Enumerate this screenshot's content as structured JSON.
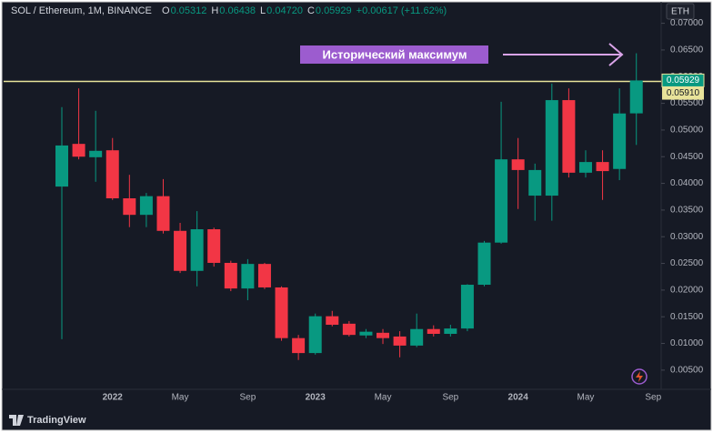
{
  "chart_data": {
    "type": "candlestick",
    "title": "SOL / Ethereum, 1M, BINANCE",
    "header": {
      "items": [
        {
          "key": "O",
          "value": 0.05312
        },
        {
          "key": "H",
          "value": 0.06438
        },
        {
          "key": "L",
          "value": 0.0472,
          "label": "0.04720"
        },
        {
          "key": "C",
          "value": 0.05929
        }
      ],
      "change": "+0.00617 (+11.62%)"
    },
    "currency": "ETH",
    "brand": "TradingView",
    "annotation": "Исторический максимум",
    "categories": [
      null,
      null,
      null,
      "2022",
      null,
      null,
      null,
      "May",
      null,
      null,
      null,
      "Sep",
      null,
      null,
      null,
      "2023",
      null,
      null,
      null,
      "May",
      null,
      null,
      null,
      "Sep",
      null,
      null,
      null,
      "2024",
      null,
      null,
      null,
      "May",
      null,
      null,
      null,
      "Sep"
    ],
    "open": [
      0.0394,
      0.0474,
      0.0449,
      0.0462,
      0.0372,
      0.0341,
      0.0376,
      0.0311,
      0.0236,
      0.0314,
      0.0251,
      0.0203,
      0.0249,
      0.0205,
      0.011,
      0.0082,
      0.0151,
      0.0137,
      0.0115,
      0.012,
      0.0113,
      0.0096,
      0.0127,
      0.0118,
      0.0128,
      0.021,
      0.0289,
      0.0445,
      0.0377,
      0.0377,
      0.0556,
      0.042,
      0.044,
      0.0427,
      0.05312,
      null
    ],
    "high": [
      0.0543,
      0.0578,
      0.0536,
      0.0485,
      0.0416,
      0.0382,
      0.0408,
      0.0326,
      0.0348,
      0.0317,
      0.0255,
      0.0258,
      0.0251,
      0.0207,
      0.0116,
      0.0156,
      0.0161,
      0.0142,
      0.0127,
      0.0127,
      0.0123,
      0.0156,
      0.0134,
      0.0135,
      0.0211,
      0.0292,
      0.0553,
      0.0485,
      0.0437,
      0.0587,
      0.0578,
      0.0462,
      0.0462,
      0.0578,
      0.06438,
      null
    ],
    "low": [
      0.0108,
      0.0445,
      0.0403,
      0.0369,
      0.0318,
      0.0318,
      0.0306,
      0.0232,
      0.0207,
      0.0244,
      0.0198,
      0.0181,
      0.0202,
      0.0105,
      0.0069,
      0.0079,
      0.0132,
      0.0113,
      0.011,
      0.0099,
      0.0074,
      0.0093,
      0.0113,
      0.0113,
      0.0123,
      0.0207,
      0.0287,
      0.0352,
      0.033,
      0.033,
      0.0411,
      0.0411,
      0.0369,
      0.0406,
      0.0472,
      null
    ],
    "close": [
      0.0471,
      0.045,
      0.0461,
      0.0372,
      0.0341,
      0.0376,
      0.0311,
      0.0236,
      0.0314,
      0.0251,
      0.0203,
      0.0249,
      0.0205,
      0.011,
      0.0082,
      0.0151,
      0.0135,
      0.0116,
      0.0122,
      0.011,
      0.0096,
      0.0127,
      0.0118,
      0.0128,
      0.021,
      0.0289,
      0.0445,
      0.0425,
      0.0425,
      0.0556,
      0.042,
      0.044,
      0.0423,
      0.0531,
      0.05929,
      null
    ],
    "up_color": "#089981",
    "down_color": "#f23645",
    "ylim": [
      0.0014,
      0.073
    ],
    "yticks": [
      {
        "value": 0.005,
        "label": "0.00500"
      },
      {
        "value": 0.01,
        "label": "0.01000"
      },
      {
        "value": 0.015,
        "label": "0.01500"
      },
      {
        "value": 0.02,
        "label": "0.02000"
      },
      {
        "value": 0.025,
        "label": "0.02500"
      },
      {
        "value": 0.03,
        "label": "0.03000"
      },
      {
        "value": 0.035,
        "label": "0.03500"
      },
      {
        "value": 0.04,
        "label": "0.04000"
      },
      {
        "value": 0.045,
        "label": "0.04500"
      },
      {
        "value": 0.05,
        "label": "0.05000"
      },
      {
        "value": 0.055,
        "label": "0.05500"
      },
      {
        "value": 0.06,
        "label": "0.06000"
      },
      {
        "value": 0.065,
        "label": "0.06500"
      },
      {
        "value": 0.07,
        "label": "0.07000"
      }
    ],
    "hline": {
      "value": 0.0591,
      "label": "0.05910",
      "color": "#e8e39a"
    }
  }
}
